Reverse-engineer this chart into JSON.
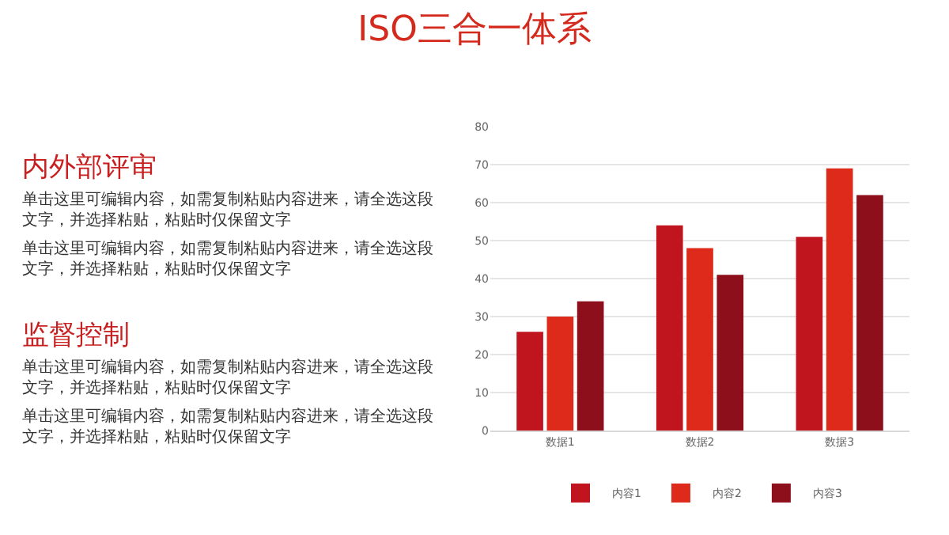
{
  "chart_data": {
    "type": "bar",
    "title": "ISO三合一体系",
    "categories": [
      "数据1",
      "数据2",
      "数据3"
    ],
    "series": [
      {
        "name": "内容1",
        "color": "#c0141f",
        "values": [
          26,
          54,
          51
        ]
      },
      {
        "name": "内容2",
        "color": "#dd2a1b",
        "values": [
          30,
          48,
          69
        ]
      },
      {
        "name": "内容3",
        "color": "#8e0f1c",
        "values": [
          34,
          41,
          62
        ]
      }
    ],
    "ylim": [
      0,
      80
    ],
    "yticks": [
      0,
      10,
      20,
      30,
      40,
      50,
      60,
      70,
      80
    ],
    "grid": "y",
    "legend": "bottom",
    "annotations": [
      "内外部评审",
      "单击这里可编辑内容，如需复制粘贴内容进来，请全选这段文字，并选择粘贴，粘贴时仅保留文字",
      "单击这里可编辑内容，如需复制粘贴内容进来，请全选这段文字，并选择粘贴，粘贴时仅保留文字",
      "监督控制",
      "单击这里可编辑内容，如需复制粘贴内容进来，请全选这段文字，并选择粘贴，粘贴时仅保留文字",
      "单击这里可编辑内容，如需复制粘贴内容进来，请全选这段文字，并选择粘贴，粘贴时仅保留文字"
    ]
  }
}
